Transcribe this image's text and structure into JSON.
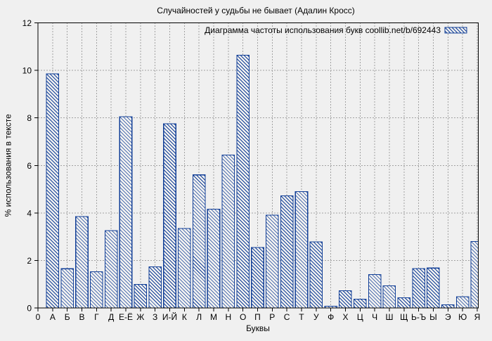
{
  "style": {
    "background": "#f0f0f0",
    "bar_color": "#123f97",
    "grid_color": "#a2a2a2",
    "axis_color": "#000000",
    "text_color": "#000000"
  },
  "chart_data": {
    "type": "bar",
    "title": "Случайностей у судьбы не бывает (Адалин Кросс)",
    "legend": "Диаграмма частоты использования букв coollib.net/b/692443",
    "xlabel": "Буквы",
    "ylabel": "% использования в тексте",
    "x_origin_label": "0",
    "ylim": [
      0,
      12
    ],
    "yticks": [
      0,
      2,
      4,
      6,
      8,
      10,
      12
    ],
    "grid": true,
    "legend_position": "top-right",
    "hatch": "back-diagonal",
    "categories": [
      "А",
      "Б",
      "В",
      "Г",
      "Д",
      "Е-Ё",
      "Ж",
      "З",
      "И-Й",
      "К",
      "Л",
      "М",
      "Н",
      "О",
      "П",
      "Р",
      "С",
      "Т",
      "У",
      "Ф",
      "Х",
      "Ц",
      "Ч",
      "Ш",
      "Щ",
      "Ь-Ъ",
      "Ы",
      "Э",
      "Ю",
      "Я"
    ],
    "values": [
      9.85,
      1.65,
      3.85,
      1.53,
      3.25,
      8.05,
      0.99,
      1.73,
      7.75,
      3.35,
      5.6,
      4.16,
      6.44,
      10.64,
      2.55,
      3.91,
      4.72,
      4.9,
      2.78,
      0.07,
      0.73,
      0.37,
      1.4,
      0.93,
      0.43,
      1.66,
      1.68,
      0.13,
      0.47,
      2.8
    ]
  }
}
